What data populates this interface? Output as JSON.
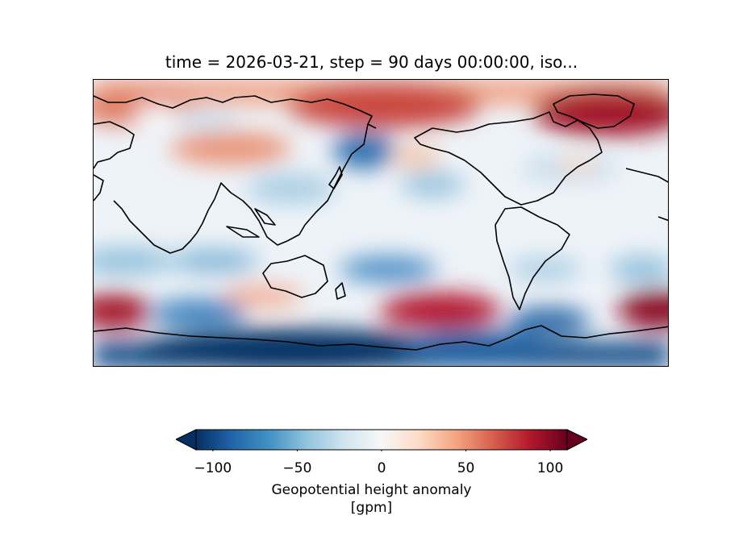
{
  "title": "time = 2026-03-21, step = 90 days 00:00:00, iso...",
  "map": {
    "projection": "PlateCarree",
    "central_longitude": 180,
    "coastlines": true,
    "field": "Geopotential height anomaly",
    "colormap": "RdBu_r",
    "value_range": [
      -110,
      110
    ],
    "anomaly_features": [
      {
        "region": "North Atlantic / Greenland",
        "sign": "positive",
        "strength": "strong"
      },
      {
        "region": "Arctic north of Pacific",
        "sign": "positive",
        "strength": "moderate"
      },
      {
        "region": "Central Asia",
        "sign": "positive",
        "strength": "moderate"
      },
      {
        "region": "North Pacific (Aleutians)",
        "sign": "negative",
        "strength": "moderate"
      },
      {
        "region": "South Pacific (~45S)",
        "sign": "positive",
        "strength": "strong"
      },
      {
        "region": "South Atlantic / Indian Ocean (~45S)",
        "sign": "positive",
        "strength": "strong"
      },
      {
        "region": "Antarctica",
        "sign": "negative",
        "strength": "strong"
      }
    ]
  },
  "colorbar": {
    "label": "Geopotential height anomaly",
    "unit": "[gpm]",
    "min": -110,
    "max": 110,
    "extend": "both",
    "ticks": [
      {
        "value": -100,
        "label": "−100"
      },
      {
        "value": -50,
        "label": "−50"
      },
      {
        "value": 0,
        "label": "0"
      },
      {
        "value": 50,
        "label": "50"
      },
      {
        "value": 100,
        "label": "100"
      }
    ],
    "colors": [
      "#053061",
      "#2166ac",
      "#4393c3",
      "#92c5de",
      "#d1e5f0",
      "#f7f7f7",
      "#fddbc7",
      "#f4a582",
      "#d6604d",
      "#b2182b",
      "#67001f"
    ]
  }
}
